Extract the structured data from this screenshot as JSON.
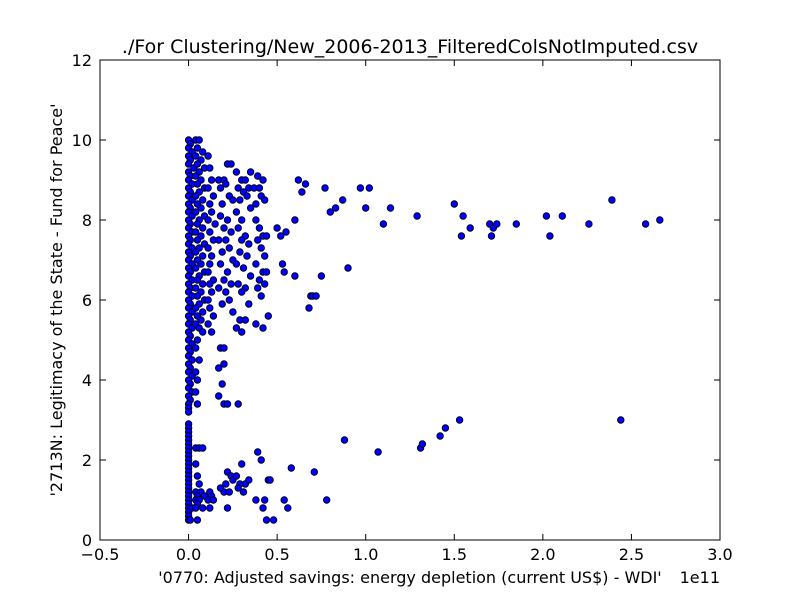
{
  "chart_data": {
    "type": "scatter",
    "title": "./For Clustering/New_2006-2013_FilteredColsNotImputed.csv",
    "xlabel": "'0770: Adjusted savings: energy depletion  (current US$) - WDI'",
    "ylabel": "'2713N: Legitimacy of the State - Fund for Peace'",
    "x_offset_label": "1e11",
    "xlim": [
      -0.5,
      3.0
    ],
    "ylim": [
      0,
      12
    ],
    "x_ticks": [
      -0.5,
      0.0,
      0.5,
      1.0,
      1.5,
      2.0,
      2.5,
      3.0
    ],
    "x_tick_labels": [
      "−0.5",
      "0.0",
      "0.5",
      "1.0",
      "1.5",
      "2.0",
      "2.5",
      "3.0"
    ],
    "y_ticks": [
      0,
      2,
      4,
      6,
      8,
      10,
      12
    ],
    "y_tick_labels": [
      "0",
      "2",
      "4",
      "6",
      "8",
      "10",
      "12"
    ],
    "grid": false,
    "marker_color": "#0000ff",
    "marker_edge": "#000000",
    "points": [
      [
        0.0,
        10.0
      ],
      [
        0.01,
        9.9
      ],
      [
        0.0,
        9.8
      ],
      [
        0.02,
        9.7
      ],
      [
        0.0,
        9.6
      ],
      [
        0.01,
        9.5
      ],
      [
        0.0,
        9.4
      ],
      [
        0.03,
        9.3
      ],
      [
        0.0,
        9.2
      ],
      [
        0.01,
        9.1
      ],
      [
        0.0,
        9.0
      ],
      [
        0.02,
        8.9
      ],
      [
        0.0,
        8.8
      ],
      [
        0.01,
        8.7
      ],
      [
        0.0,
        8.6
      ],
      [
        0.02,
        8.5
      ],
      [
        0.0,
        8.4
      ],
      [
        0.01,
        8.3
      ],
      [
        0.0,
        8.2
      ],
      [
        0.02,
        8.1
      ],
      [
        0.0,
        8.0
      ],
      [
        0.01,
        7.9
      ],
      [
        0.0,
        7.8
      ],
      [
        0.02,
        7.7
      ],
      [
        0.0,
        7.6
      ],
      [
        0.01,
        7.5
      ],
      [
        0.0,
        7.4
      ],
      [
        0.02,
        7.3
      ],
      [
        0.0,
        7.2
      ],
      [
        0.01,
        7.1
      ],
      [
        0.0,
        7.0
      ],
      [
        0.02,
        6.9
      ],
      [
        0.0,
        6.8
      ],
      [
        0.01,
        6.7
      ],
      [
        0.0,
        6.6
      ],
      [
        0.02,
        6.5
      ],
      [
        0.0,
        6.4
      ],
      [
        0.01,
        6.3
      ],
      [
        0.0,
        6.2
      ],
      [
        0.02,
        6.1
      ],
      [
        0.0,
        6.0
      ],
      [
        0.01,
        5.9
      ],
      [
        0.0,
        5.8
      ],
      [
        0.02,
        5.7
      ],
      [
        0.0,
        5.6
      ],
      [
        0.01,
        5.5
      ],
      [
        0.0,
        5.4
      ],
      [
        0.02,
        5.3
      ],
      [
        0.0,
        5.2
      ],
      [
        0.01,
        5.1
      ],
      [
        0.0,
        5.0
      ],
      [
        0.02,
        4.9
      ],
      [
        0.0,
        4.8
      ],
      [
        0.01,
        4.7
      ],
      [
        0.0,
        4.6
      ],
      [
        0.02,
        4.5
      ],
      [
        0.0,
        4.4
      ],
      [
        0.01,
        4.3
      ],
      [
        0.0,
        4.2
      ],
      [
        0.02,
        4.1
      ],
      [
        0.0,
        4.0
      ],
      [
        0.01,
        3.9
      ],
      [
        0.0,
        3.8
      ],
      [
        0.02,
        3.7
      ],
      [
        0.0,
        3.6
      ],
      [
        0.01,
        3.5
      ],
      [
        0.0,
        3.4
      ],
      [
        0.0,
        3.3
      ],
      [
        0.0,
        3.2
      ],
      [
        0.0,
        2.9
      ],
      [
        0.0,
        2.8
      ],
      [
        0.0,
        2.7
      ],
      [
        0.0,
        2.6
      ],
      [
        0.0,
        2.5
      ],
      [
        0.0,
        2.4
      ],
      [
        0.0,
        2.3
      ],
      [
        0.0,
        2.2
      ],
      [
        0.0,
        2.1
      ],
      [
        0.0,
        2.0
      ],
      [
        0.0,
        1.9
      ],
      [
        0.0,
        1.8
      ],
      [
        0.0,
        1.7
      ],
      [
        0.0,
        1.6
      ],
      [
        0.0,
        1.5
      ],
      [
        0.0,
        1.4
      ],
      [
        0.0,
        1.3
      ],
      [
        0.0,
        1.2
      ],
      [
        0.0,
        1.1
      ],
      [
        0.0,
        1.0
      ],
      [
        0.0,
        0.9
      ],
      [
        0.0,
        0.8
      ],
      [
        0.0,
        0.7
      ],
      [
        0.0,
        0.6
      ],
      [
        0.0,
        0.5
      ],
      [
        0.01,
        0.5
      ],
      [
        0.02,
        0.8
      ],
      [
        0.04,
        10.0
      ],
      [
        0.06,
        10.0
      ],
      [
        0.05,
        9.8
      ],
      [
        0.08,
        9.7
      ],
      [
        0.04,
        9.6
      ],
      [
        0.07,
        9.5
      ],
      [
        0.05,
        9.4
      ],
      [
        0.09,
        9.3
      ],
      [
        0.06,
        9.2
      ],
      [
        0.04,
        9.1
      ],
      [
        0.07,
        9.0
      ],
      [
        0.05,
        8.9
      ],
      [
        0.09,
        8.8
      ],
      [
        0.06,
        8.7
      ],
      [
        0.04,
        8.6
      ],
      [
        0.08,
        8.5
      ],
      [
        0.05,
        8.4
      ],
      [
        0.07,
        8.3
      ],
      [
        0.04,
        8.2
      ],
      [
        0.09,
        8.1
      ],
      [
        0.06,
        8.0
      ],
      [
        0.05,
        7.9
      ],
      [
        0.08,
        7.8
      ],
      [
        0.04,
        7.7
      ],
      [
        0.07,
        7.6
      ],
      [
        0.05,
        7.5
      ],
      [
        0.09,
        7.4
      ],
      [
        0.06,
        7.3
      ],
      [
        0.04,
        7.2
      ],
      [
        0.08,
        7.1
      ],
      [
        0.05,
        7.0
      ],
      [
        0.07,
        6.9
      ],
      [
        0.04,
        6.8
      ],
      [
        0.09,
        6.7
      ],
      [
        0.06,
        6.6
      ],
      [
        0.05,
        6.5
      ],
      [
        0.08,
        6.4
      ],
      [
        0.04,
        6.3
      ],
      [
        0.07,
        6.2
      ],
      [
        0.05,
        6.1
      ],
      [
        0.09,
        6.0
      ],
      [
        0.06,
        5.9
      ],
      [
        0.04,
        5.8
      ],
      [
        0.08,
        5.7
      ],
      [
        0.05,
        5.6
      ],
      [
        0.07,
        5.5
      ],
      [
        0.04,
        5.4
      ],
      [
        0.06,
        5.3
      ],
      [
        0.08,
        5.2
      ],
      [
        0.05,
        5.0
      ],
      [
        0.04,
        4.8
      ],
      [
        0.06,
        4.5
      ],
      [
        0.04,
        4.2
      ],
      [
        0.05,
        4.0
      ],
      [
        0.04,
        3.7
      ],
      [
        0.05,
        3.4
      ],
      [
        0.04,
        2.3
      ],
      [
        0.06,
        2.3
      ],
      [
        0.08,
        2.3
      ],
      [
        0.04,
        1.9
      ],
      [
        0.05,
        1.6
      ],
      [
        0.06,
        1.4
      ],
      [
        0.04,
        1.2
      ],
      [
        0.07,
        1.2
      ],
      [
        0.05,
        1.1
      ],
      [
        0.09,
        1.1
      ],
      [
        0.04,
        1.0
      ],
      [
        0.06,
        1.0
      ],
      [
        0.05,
        0.9
      ],
      [
        0.08,
        0.8
      ],
      [
        0.04,
        0.8
      ],
      [
        0.05,
        0.5
      ],
      [
        0.11,
        9.6
      ],
      [
        0.12,
        9.3
      ],
      [
        0.13,
        9.0
      ],
      [
        0.11,
        8.8
      ],
      [
        0.14,
        8.6
      ],
      [
        0.12,
        8.4
      ],
      [
        0.13,
        8.2
      ],
      [
        0.11,
        8.0
      ],
      [
        0.15,
        7.9
      ],
      [
        0.12,
        7.7
      ],
      [
        0.14,
        7.5
      ],
      [
        0.11,
        7.3
      ],
      [
        0.13,
        7.1
      ],
      [
        0.12,
        6.9
      ],
      [
        0.11,
        6.7
      ],
      [
        0.14,
        6.5
      ],
      [
        0.12,
        6.4
      ],
      [
        0.13,
        6.2
      ],
      [
        0.11,
        6.0
      ],
      [
        0.12,
        5.8
      ],
      [
        0.14,
        5.6
      ],
      [
        0.11,
        5.4
      ],
      [
        0.13,
        5.2
      ],
      [
        0.12,
        1.2
      ],
      [
        0.11,
        1.0
      ],
      [
        0.13,
        1.1
      ],
      [
        0.14,
        1.0
      ],
      [
        0.12,
        0.8
      ],
      [
        0.17,
        9.0
      ],
      [
        0.2,
        9.0
      ],
      [
        0.22,
        9.4
      ],
      [
        0.24,
        9.4
      ],
      [
        0.18,
        8.8
      ],
      [
        0.21,
        8.9
      ],
      [
        0.23,
        8.6
      ],
      [
        0.19,
        8.4
      ],
      [
        0.25,
        8.5
      ],
      [
        0.18,
        8.1
      ],
      [
        0.22,
        8.0
      ],
      [
        0.2,
        7.8
      ],
      [
        0.24,
        7.7
      ],
      [
        0.17,
        7.5
      ],
      [
        0.21,
        7.5
      ],
      [
        0.23,
        7.3
      ],
      [
        0.19,
        7.2
      ],
      [
        0.25,
        7.0
      ],
      [
        0.18,
        6.9
      ],
      [
        0.22,
        6.7
      ],
      [
        0.2,
        6.5
      ],
      [
        0.24,
        6.4
      ],
      [
        0.17,
        6.3
      ],
      [
        0.21,
        6.2
      ],
      [
        0.23,
        6.0
      ],
      [
        0.19,
        5.9
      ],
      [
        0.25,
        5.7
      ],
      [
        0.18,
        4.8
      ],
      [
        0.2,
        4.8
      ],
      [
        0.17,
        4.3
      ],
      [
        0.2,
        4.4
      ],
      [
        0.19,
        3.9
      ],
      [
        0.17,
        3.6
      ],
      [
        0.2,
        3.4
      ],
      [
        0.22,
        3.4
      ],
      [
        0.2,
        1.2
      ],
      [
        0.22,
        1.7
      ],
      [
        0.24,
        1.6
      ],
      [
        0.21,
        1.4
      ],
      [
        0.25,
        1.5
      ],
      [
        0.23,
        1.2
      ],
      [
        0.18,
        1.3
      ],
      [
        0.22,
        0.8
      ],
      [
        0.27,
        9.2
      ],
      [
        0.3,
        9.0
      ],
      [
        0.32,
        9.0
      ],
      [
        0.35,
        9.2
      ],
      [
        0.28,
        8.8
      ],
      [
        0.31,
        8.7
      ],
      [
        0.34,
        8.8
      ],
      [
        0.29,
        8.5
      ],
      [
        0.33,
        8.6
      ],
      [
        0.27,
        8.2
      ],
      [
        0.3,
        8.0
      ],
      [
        0.35,
        8.3
      ],
      [
        0.28,
        7.8
      ],
      [
        0.32,
        7.6
      ],
      [
        0.3,
        7.5
      ],
      [
        0.34,
        7.4
      ],
      [
        0.29,
        7.2
      ],
      [
        0.33,
        7.1
      ],
      [
        0.27,
        6.9
      ],
      [
        0.31,
        6.8
      ],
      [
        0.35,
        6.6
      ],
      [
        0.28,
        6.4
      ],
      [
        0.32,
        6.3
      ],
      [
        0.3,
        6.2
      ],
      [
        0.34,
        5.9
      ],
      [
        0.29,
        5.5
      ],
      [
        0.32,
        5.5
      ],
      [
        0.27,
        5.3
      ],
      [
        0.3,
        5.2
      ],
      [
        0.28,
        3.4
      ],
      [
        0.3,
        1.9
      ],
      [
        0.32,
        1.4
      ],
      [
        0.27,
        1.6
      ],
      [
        0.29,
        1.4
      ],
      [
        0.31,
        1.2
      ],
      [
        0.34,
        1.5
      ],
      [
        0.28,
        1.3
      ],
      [
        0.37,
        8.8
      ],
      [
        0.4,
        8.8
      ],
      [
        0.39,
        9.1
      ],
      [
        0.42,
        9.0
      ],
      [
        0.38,
        8.4
      ],
      [
        0.41,
        8.6
      ],
      [
        0.43,
        8.5
      ],
      [
        0.38,
        8.0
      ],
      [
        0.4,
        7.8
      ],
      [
        0.42,
        7.6
      ],
      [
        0.44,
        7.6
      ],
      [
        0.39,
        7.5
      ],
      [
        0.41,
        7.3
      ],
      [
        0.43,
        7.1
      ],
      [
        0.38,
        6.9
      ],
      [
        0.42,
        6.7
      ],
      [
        0.44,
        6.7
      ],
      [
        0.4,
        6.5
      ],
      [
        0.43,
        6.4
      ],
      [
        0.39,
        6.3
      ],
      [
        0.41,
        6.1
      ],
      [
        0.38,
        5.4
      ],
      [
        0.42,
        5.3
      ],
      [
        0.45,
        5.6
      ],
      [
        0.39,
        2.2
      ],
      [
        0.41,
        2.0
      ],
      [
        0.38,
        1.0
      ],
      [
        0.42,
        0.8
      ],
      [
        0.43,
        1.0
      ],
      [
        0.45,
        1.5
      ],
      [
        0.44,
        0.5
      ],
      [
        0.48,
        0.5
      ],
      [
        0.46,
        1.5
      ],
      [
        0.5,
        7.8
      ],
      [
        0.52,
        7.6
      ],
      [
        0.55,
        7.7
      ],
      [
        0.53,
        6.9
      ],
      [
        0.54,
        6.7
      ],
      [
        0.54,
        1.0
      ],
      [
        0.56,
        0.8
      ],
      [
        0.58,
        1.8
      ],
      [
        0.6,
        6.6
      ],
      [
        0.6,
        8.0
      ],
      [
        0.62,
        9.0
      ],
      [
        0.64,
        8.7
      ],
      [
        0.66,
        8.9
      ],
      [
        0.68,
        5.8
      ],
      [
        0.69,
        6.1
      ],
      [
        0.7,
        6.1
      ],
      [
        0.71,
        1.7
      ],
      [
        0.72,
        6.1
      ],
      [
        0.75,
        6.6
      ],
      [
        0.77,
        8.8
      ],
      [
        0.78,
        1.0
      ],
      [
        0.8,
        8.2
      ],
      [
        0.83,
        8.3
      ],
      [
        0.87,
        8.5
      ],
      [
        0.88,
        2.5
      ],
      [
        0.9,
        6.8
      ],
      [
        0.97,
        8.8
      ],
      [
        1.0,
        8.3
      ],
      [
        1.02,
        8.8
      ],
      [
        1.07,
        2.2
      ],
      [
        1.1,
        7.9
      ],
      [
        1.14,
        8.3
      ],
      [
        1.29,
        8.1
      ],
      [
        1.31,
        2.3
      ],
      [
        1.32,
        2.4
      ],
      [
        1.42,
        2.6
      ],
      [
        1.45,
        2.8
      ],
      [
        1.5,
        8.4
      ],
      [
        1.53,
        3.0
      ],
      [
        1.54,
        7.6
      ],
      [
        1.55,
        8.1
      ],
      [
        1.59,
        7.8
      ],
      [
        1.7,
        7.9
      ],
      [
        1.71,
        7.6
      ],
      [
        1.72,
        7.8
      ],
      [
        1.74,
        7.9
      ],
      [
        1.85,
        7.9
      ],
      [
        2.02,
        8.1
      ],
      [
        2.04,
        7.6
      ],
      [
        2.11,
        8.1
      ],
      [
        2.26,
        7.9
      ],
      [
        2.39,
        8.5
      ],
      [
        2.44,
        3.0
      ],
      [
        2.58,
        7.9
      ],
      [
        2.66,
        8.0
      ]
    ]
  }
}
